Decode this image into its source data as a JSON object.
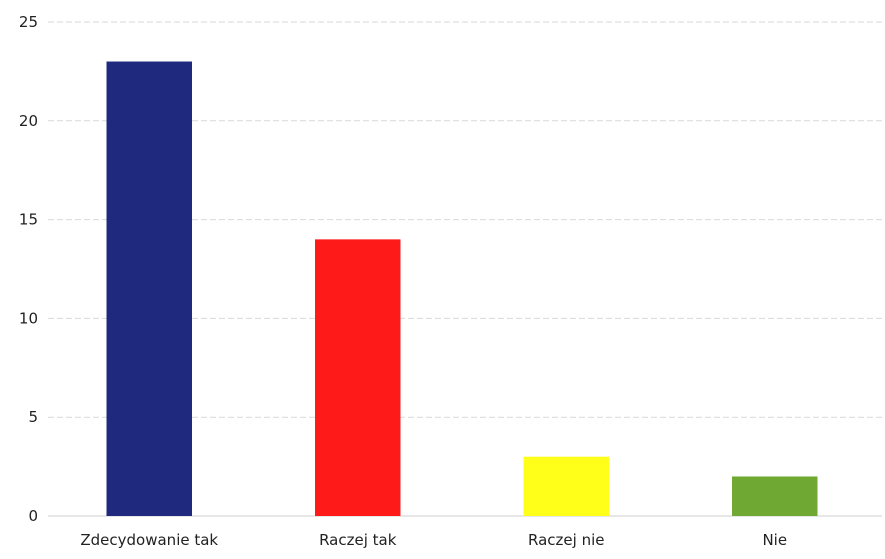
{
  "chart_data": {
    "type": "bar",
    "categories": [
      "Zdecydowanie tak",
      "Raczej tak",
      "Raczej nie",
      "Nie"
    ],
    "values": [
      23,
      14,
      3,
      2
    ],
    "colors": [
      "#1f2a7f",
      "#ff1a1a",
      "#ffff1a",
      "#6fa832"
    ],
    "ylim": [
      0,
      25
    ],
    "yticks": [
      0,
      5,
      10,
      15,
      20,
      25
    ],
    "grid": true,
    "legend": "none",
    "title": "",
    "xlabel": "",
    "ylabel": ""
  }
}
